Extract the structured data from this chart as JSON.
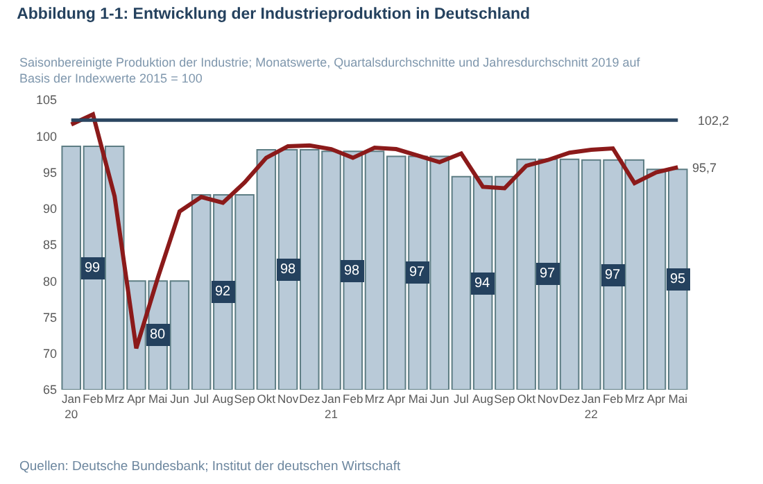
{
  "chart_data": {
    "type": "bar",
    "title": "Abbildung 1-1: Entwicklung der Industrieproduktion in Deutschland",
    "subtitle": "Saisonbereinigte Produktion der Industrie; Monatswerte, Quartalsdurchschnitte und Jahresdurchschnitt 2019 auf\nBasis der Indexwerte 2015 = 100",
    "categories": [
      "Jan\n20",
      "Feb",
      "Mrz",
      "Apr",
      "Mai",
      "Jun",
      "Jul",
      "Aug",
      "Sep",
      "Okt",
      "Nov",
      "Dez",
      "Jan\n21",
      "Feb",
      "Mrz",
      "Apr",
      "Mai",
      "Jun",
      "Jul",
      "Aug",
      "Sep",
      "Okt",
      "Nov",
      "Dez",
      "Jan\n22",
      "Feb",
      "Mrz",
      "Apr",
      "Mai"
    ],
    "series": [
      {
        "color": "#b9cad8",
        "values": [
          98.6,
          98.6,
          98.6,
          80.0,
          80.0,
          80.0,
          91.9,
          91.9,
          91.9,
          98.1,
          98.1,
          98.1,
          97.9,
          97.9,
          97.9,
          97.2,
          97.2,
          97.2,
          94.4,
          94.4,
          94.4,
          96.8,
          96.8,
          96.8,
          96.7,
          96.7,
          96.7,
          95.4,
          95.4
        ],
        "value_labels": [
          null,
          "99",
          null,
          null,
          "80",
          null,
          null,
          "92",
          null,
          null,
          "98",
          null,
          null,
          "98",
          null,
          null,
          "97",
          null,
          null,
          "94",
          null,
          null,
          "97",
          null,
          null,
          "97",
          null,
          null,
          "95"
        ]
      },
      {
        "type": "line",
        "color": "#8b1a1a",
        "values": [
          101.6,
          103.0,
          91.7,
          70.7,
          80.5,
          89.6,
          91.6,
          90.8,
          93.6,
          97.0,
          98.6,
          98.7,
          98.2,
          97.0,
          98.4,
          98.2,
          97.3,
          96.4,
          97.6,
          93.0,
          92.8,
          95.9,
          96.7,
          97.7,
          98.1,
          98.3,
          93.5,
          95.0,
          95.7
        ],
        "value_labels": [
          null,
          null,
          null,
          null,
          null,
          null,
          null,
          null,
          null,
          null,
          null,
          null,
          null,
          null,
          null,
          null,
          null,
          null,
          null,
          null,
          null,
          null,
          null,
          null,
          null,
          null,
          null,
          null,
          "95,7"
        ]
      }
    ],
    "ylim": [
      65,
      105
    ],
    "yticks": [
      65,
      70,
      75,
      80,
      85,
      90,
      95,
      100,
      105
    ],
    "ref_lines": [
      {
        "axis": "y",
        "value": 102.2,
        "label": "102,2",
        "color": "#2b4661"
      }
    ],
    "annotations": [
      "Quellen: Deutsche Bundesbank; Institut der deutschen Wirtschaft"
    ]
  }
}
